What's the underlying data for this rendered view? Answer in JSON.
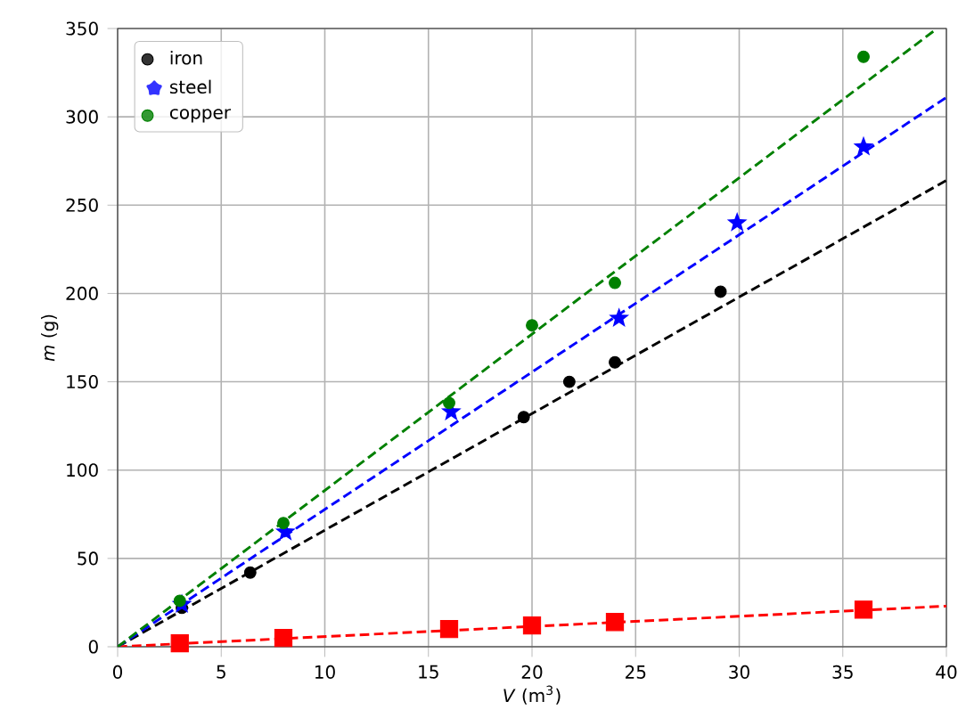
{
  "chart_data": {
    "type": "scatter",
    "xlabel": "*V* (m$^{3}$)",
    "ylabel": "*m* (g)",
    "xlim": [
      0,
      40
    ],
    "ylim": [
      0,
      350
    ],
    "xticks": [
      0,
      5,
      10,
      15,
      20,
      25,
      30,
      35,
      40
    ],
    "yticks": [
      0,
      50,
      100,
      150,
      200,
      250,
      300,
      350
    ],
    "grid": true,
    "legend": "top left",
    "series": [
      {
        "name": "iron",
        "color": "#000000",
        "marker": "circle",
        "x": [
          3.1,
          6.4,
          19.6,
          21.8,
          24,
          29.1
        ],
        "values": [
          22,
          42,
          130,
          150,
          161,
          201
        ]
      },
      {
        "color": "#ff0000",
        "marker": "square",
        "x": [
          3,
          8,
          16,
          20,
          24,
          36
        ],
        "values": [
          2,
          5,
          10,
          12,
          14,
          21
        ]
      },
      {
        "name": "steel",
        "color": "#0000ff",
        "marker": "star",
        "x": [
          3.1,
          8.1,
          16.1,
          24.2,
          29.9,
          36
        ],
        "values": [
          24,
          65,
          133,
          186,
          240,
          283
        ]
      },
      {
        "name": "copper",
        "color": "#008000",
        "marker": "circle",
        "x": [
          3,
          8,
          16,
          20,
          24,
          36
        ],
        "values": [
          26,
          70,
          138,
          182,
          206,
          334
        ]
      },
      {
        "type": "line",
        "color": "#000000",
        "line_style": "dashed",
        "x": [
          0,
          40
        ],
        "values": [
          0,
          264
        ]
      },
      {
        "type": "line",
        "color": "#ff0000",
        "line_style": "dashed",
        "x": [
          0,
          40
        ],
        "values": [
          0,
          23
        ]
      },
      {
        "type": "line",
        "color": "#0000ff",
        "line_style": "dashed",
        "x": [
          0,
          40
        ],
        "values": [
          0,
          311
        ]
      },
      {
        "type": "line",
        "color": "#008000",
        "line_style": "dashed",
        "x": [
          0,
          39.55
        ],
        "values": [
          0,
          350
        ]
      }
    ]
  }
}
